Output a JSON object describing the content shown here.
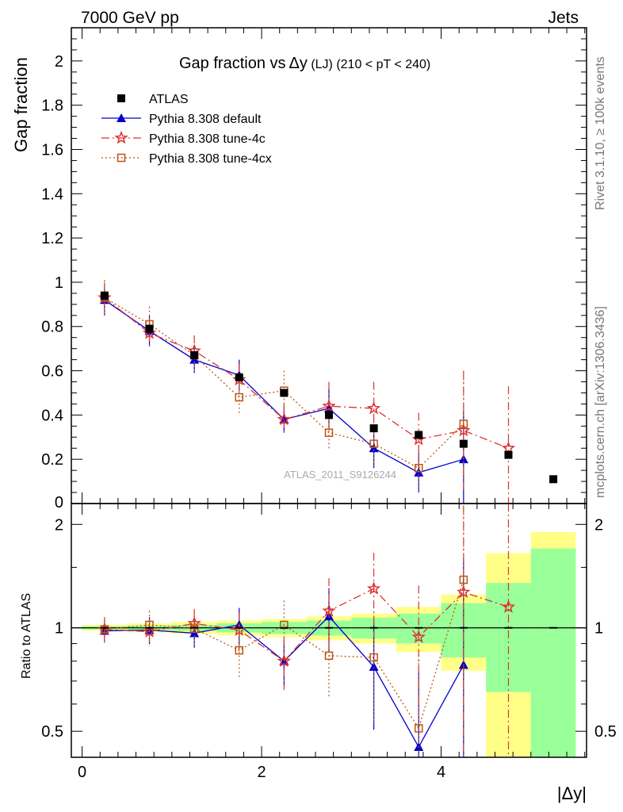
{
  "header": {
    "left": "7000 GeV pp",
    "right": "Jets"
  },
  "side_texts": {
    "rivet": "Rivet 3.1.10, ≥ 100k events",
    "mcplots": "mcplots.cern.ch [arXiv:1306.3436]"
  },
  "chart_data": {
    "type": "scatter",
    "title_main": "Gap fraction vs",
    "title_delta": "Δy",
    "title_suffix": " (LJ) (210 < pT < 240)",
    "analysis_tag": "ATLAS_2011_S9126244",
    "ylabel": "Gap fraction",
    "ratio_ylabel": "Ratio to ATLAS",
    "xlabel": "|Δy|",
    "xlim": [
      -0.12,
      5.62
    ],
    "ylim": [
      0,
      2.15
    ],
    "ratio_ylim": [
      0.42,
      2.3
    ],
    "ratio_log": true,
    "x_ticks": [
      0,
      2,
      4
    ],
    "y_ticks": [
      0.2,
      0.4,
      0.6,
      0.8,
      1,
      1.2,
      1.4,
      1.6,
      1.8,
      2
    ],
    "y_tick_labels": [
      "0.2",
      "0.4",
      "0.6",
      "0.8",
      "1",
      "1.2",
      "1.4",
      "1.6",
      "1.8",
      "2"
    ],
    "y_zero_label": "0",
    "ratio_ticks": [
      0.5,
      1,
      2
    ],
    "ratio_tick_labels": [
      "0.5",
      "1",
      "2"
    ],
    "data": {
      "name": "ATLAS",
      "color": "#000000",
      "x": [
        0.25,
        0.75,
        1.25,
        1.75,
        2.25,
        2.75,
        3.25,
        3.75,
        4.25,
        4.75,
        5.25
      ],
      "y": [
        0.94,
        0.79,
        0.67,
        0.57,
        0.5,
        0.4,
        0.34,
        0.31,
        0.27,
        0.22,
        0.11
      ],
      "band_stat": [
        0.01,
        0.015,
        0.02,
        0.03,
        0.04,
        0.05,
        0.07,
        0.1,
        0.18,
        0.35,
        0.7
      ],
      "band_total": [
        0.02,
        0.03,
        0.04,
        0.05,
        0.06,
        0.08,
        0.1,
        0.15,
        0.25,
        0.65,
        0.9
      ]
    },
    "series": [
      {
        "name": "Pythia 8.308 default",
        "color": "#0000cc",
        "marker": "triangle",
        "dash": "",
        "x": [
          0.25,
          0.75,
          1.25,
          1.75,
          2.25,
          2.75,
          3.25,
          3.75,
          4.25
        ],
        "y": [
          0.92,
          0.78,
          0.65,
          0.58,
          0.38,
          0.43,
          0.25,
          0.14,
          0.2
        ],
        "err": [
          0.07,
          0.07,
          0.06,
          0.07,
          0.06,
          0.09,
          0.09,
          0.09,
          0.22
        ],
        "ratio": [
          0.98,
          0.985,
          0.965,
          1.02,
          0.8,
          1.08,
          0.77,
          0.45,
          0.78
        ]
      },
      {
        "name": "Pythia 8.308 tune-4c",
        "color": "#dd3333",
        "marker": "star",
        "dash": "10,4,2,4",
        "x": [
          0.25,
          0.75,
          1.25,
          1.75,
          2.25,
          2.75,
          3.25,
          3.75,
          4.25,
          4.75
        ],
        "y": [
          0.93,
          0.77,
          0.69,
          0.56,
          0.38,
          0.44,
          0.43,
          0.29,
          0.33,
          0.25
        ],
        "err": [
          0.07,
          0.07,
          0.07,
          0.07,
          0.07,
          0.11,
          0.12,
          0.12,
          0.27,
          0.28
        ],
        "ratio": [
          0.99,
          0.975,
          1.03,
          0.985,
          0.8,
          1.12,
          1.3,
          0.94,
          1.27,
          1.15
        ]
      },
      {
        "name": "Pythia 8.308 tune-4cx",
        "color": "#bb5511",
        "marker": "square",
        "dash": "2,3",
        "x": [
          0.25,
          0.75,
          1.25,
          1.75,
          2.25,
          2.75,
          3.25,
          3.75,
          4.25
        ],
        "y": [
          0.93,
          0.81,
          0.67,
          0.48,
          0.51,
          0.32,
          0.27,
          0.16,
          0.36
        ],
        "err": [
          0.08,
          0.08,
          0.08,
          0.08,
          0.09,
          0.08,
          0.1,
          0.1,
          0.24
        ],
        "ratio": [
          0.99,
          1.02,
          0.995,
          0.86,
          1.02,
          0.83,
          0.82,
          0.51,
          1.38
        ]
      }
    ],
    "legend": [
      {
        "label": "ATLAS",
        "marker": "data"
      },
      {
        "label": "Pythia 8.308 default",
        "marker": "triangle",
        "color": "#0000cc",
        "dash": ""
      },
      {
        "label": "Pythia 8.308 tune-4c",
        "marker": "star",
        "color": "#dd3333",
        "dash": "10,4,2,4"
      },
      {
        "label": "Pythia 8.308 tune-4cx",
        "marker": "square",
        "color": "#bb5511",
        "dash": "2,3"
      }
    ],
    "band_colors": {
      "stat": "#99ff99",
      "total": "#ffff88"
    },
    "legend_position": "top-left",
    "grid": false
  }
}
